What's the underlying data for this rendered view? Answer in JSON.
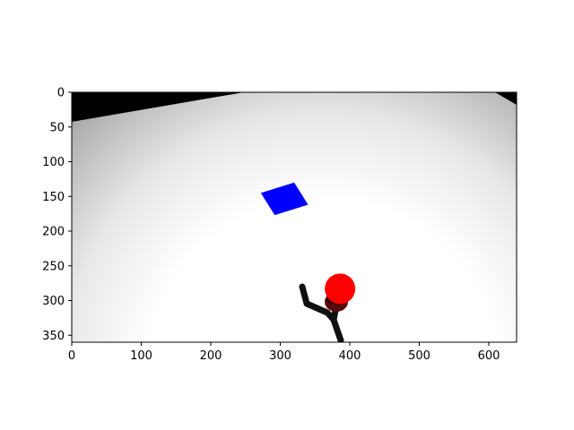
{
  "figure": {
    "background": "#ffffff",
    "axes_color": "#000000"
  },
  "image_view": {
    "description_tags": [
      "robot-arm-camera-view",
      "floor-gradient"
    ],
    "x_range": [
      0,
      640
    ],
    "y_range": [
      360,
      0
    ],
    "y_inverted": true,
    "grid": false
  },
  "axes": {
    "x_ticks": [
      {
        "value": 0,
        "label": "0"
      },
      {
        "value": 100,
        "label": "100"
      },
      {
        "value": 200,
        "label": "200"
      },
      {
        "value": 300,
        "label": "300"
      },
      {
        "value": 400,
        "label": "400"
      },
      {
        "value": 500,
        "label": "500"
      },
      {
        "value": 600,
        "label": "600"
      }
    ],
    "y_ticks": [
      {
        "value": 0,
        "label": "0"
      },
      {
        "value": 50,
        "label": "50"
      },
      {
        "value": 100,
        "label": "100"
      },
      {
        "value": 150,
        "label": "150"
      },
      {
        "value": 200,
        "label": "200"
      },
      {
        "value": 250,
        "label": "250"
      },
      {
        "value": 300,
        "label": "300"
      },
      {
        "value": 350,
        "label": "350"
      }
    ]
  },
  "scene": {
    "floor_light": "#ffffff",
    "floor_dark": "#707070",
    "wall_color": "#000000",
    "target_square": {
      "color": "#0000ff",
      "corners": [
        [
          272,
          145
        ],
        [
          320,
          130
        ],
        [
          340,
          162
        ],
        [
          292,
          177
        ]
      ]
    },
    "ball": {
      "color": "#ff0000",
      "center": [
        386,
        283
      ],
      "radius": 17
    },
    "arm_color": "#101010",
    "arm_shadow_color": "#5a0a0a"
  }
}
